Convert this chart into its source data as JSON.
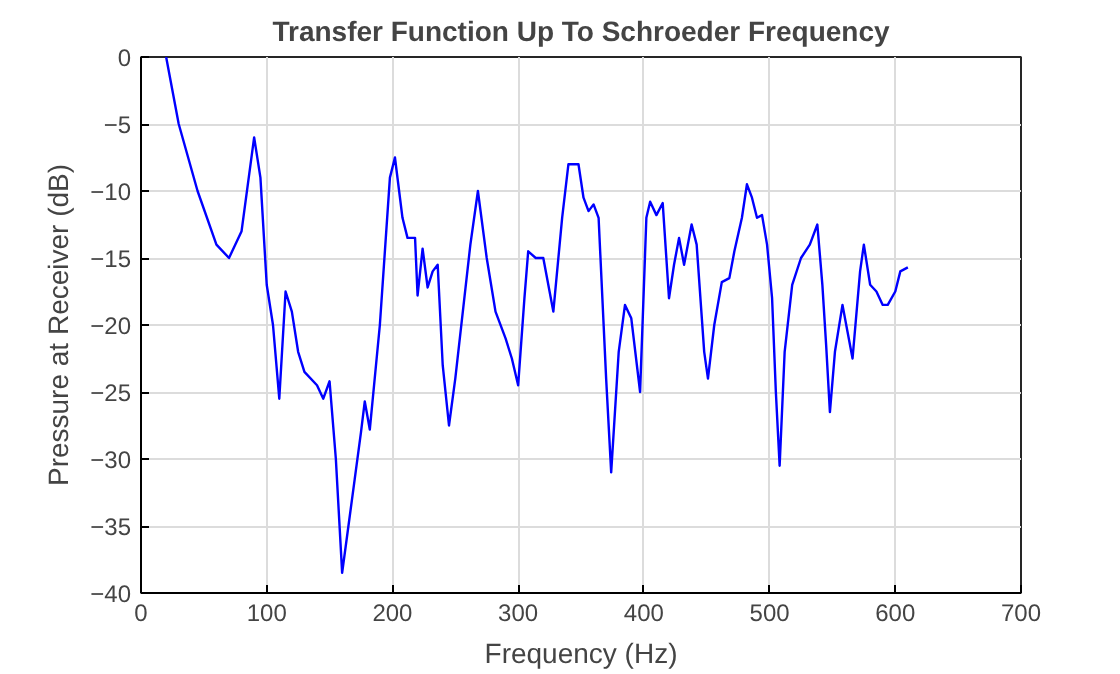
{
  "chart_data": {
    "type": "line",
    "title": "Transfer Function Up To Schroeder Frequency",
    "xlabel": "Frequency (Hz)",
    "ylabel": "Pressure at Receiver (dB)",
    "xlim": [
      0,
      700
    ],
    "ylim": [
      -40,
      0
    ],
    "xticks": [
      0,
      100,
      200,
      300,
      400,
      500,
      600,
      700
    ],
    "yticks": [
      -40,
      -35,
      -30,
      -25,
      -20,
      -15,
      -10,
      -5,
      0
    ],
    "grid": true,
    "series": [
      {
        "color": "#0000ff",
        "x": [
          20,
          30,
          45,
          60,
          70,
          80,
          90,
          95,
          100,
          105,
          110,
          115,
          120,
          125,
          130,
          140,
          145,
          150,
          155,
          160,
          165,
          170,
          175,
          178,
          182,
          190,
          198,
          202,
          208,
          212,
          218,
          220,
          224,
          228,
          232,
          236,
          240,
          245,
          250,
          262,
          268,
          275,
          282,
          290,
          295,
          300,
          305,
          308,
          314,
          320,
          325,
          328,
          335,
          340,
          348,
          352,
          356,
          360,
          364,
          370,
          374,
          380,
          385,
          390,
          397,
          402,
          405,
          410,
          415,
          420,
          424,
          428,
          432,
          438,
          442,
          448,
          451,
          456,
          462,
          468,
          472,
          478,
          482,
          486,
          490,
          494,
          498,
          502,
          505,
          508,
          512,
          518,
          525,
          532,
          538,
          542,
          545,
          548,
          552,
          558,
          562,
          566,
          572,
          575,
          580,
          585,
          590,
          594,
          600,
          604,
          610
        ],
        "values": [
          0,
          -5,
          -10,
          -14,
          -15,
          -13,
          -6,
          -9,
          -17,
          -20,
          -25.5,
          -17.5,
          -19,
          -22,
          -23.5,
          -24.5,
          -25.5,
          -24.2,
          -30,
          -38.5,
          -35,
          -31.5,
          -28,
          -25.7,
          -27.8,
          -20,
          -9,
          -7.5,
          -12,
          -13.5,
          -13.5,
          -17.8,
          -14.3,
          -17.2,
          -16,
          -15.5,
          -23,
          -27.5,
          -24,
          -14,
          -10,
          -15,
          -19,
          -21,
          -22.5,
          -24.5,
          -18,
          -14.5,
          -15,
          -15,
          -17.5,
          -19,
          -12,
          -8,
          -8,
          -10.5,
          -11.5,
          -11,
          -12,
          -24,
          -31,
          -22,
          -18.5,
          -19.5,
          -25,
          -12,
          -10.8,
          -11.8,
          -10.9,
          -18,
          -15.5,
          -13.5,
          -15.5,
          -12.5,
          -14,
          -22,
          -24,
          -20,
          -16.8,
          -16.5,
          -14.5,
          -12,
          -9.5,
          -10.5,
          -12,
          -11.8,
          -14,
          -18,
          -25,
          -30.5,
          -22,
          -17,
          -15,
          -14,
          -12.5,
          -17,
          -21.5,
          -26.5,
          -22,
          -18.5,
          -20.5,
          -22.5,
          -16,
          -14,
          -17,
          -17.5,
          -18.5,
          -18.5,
          -17.5,
          -16,
          -15.7
        ]
      }
    ]
  }
}
